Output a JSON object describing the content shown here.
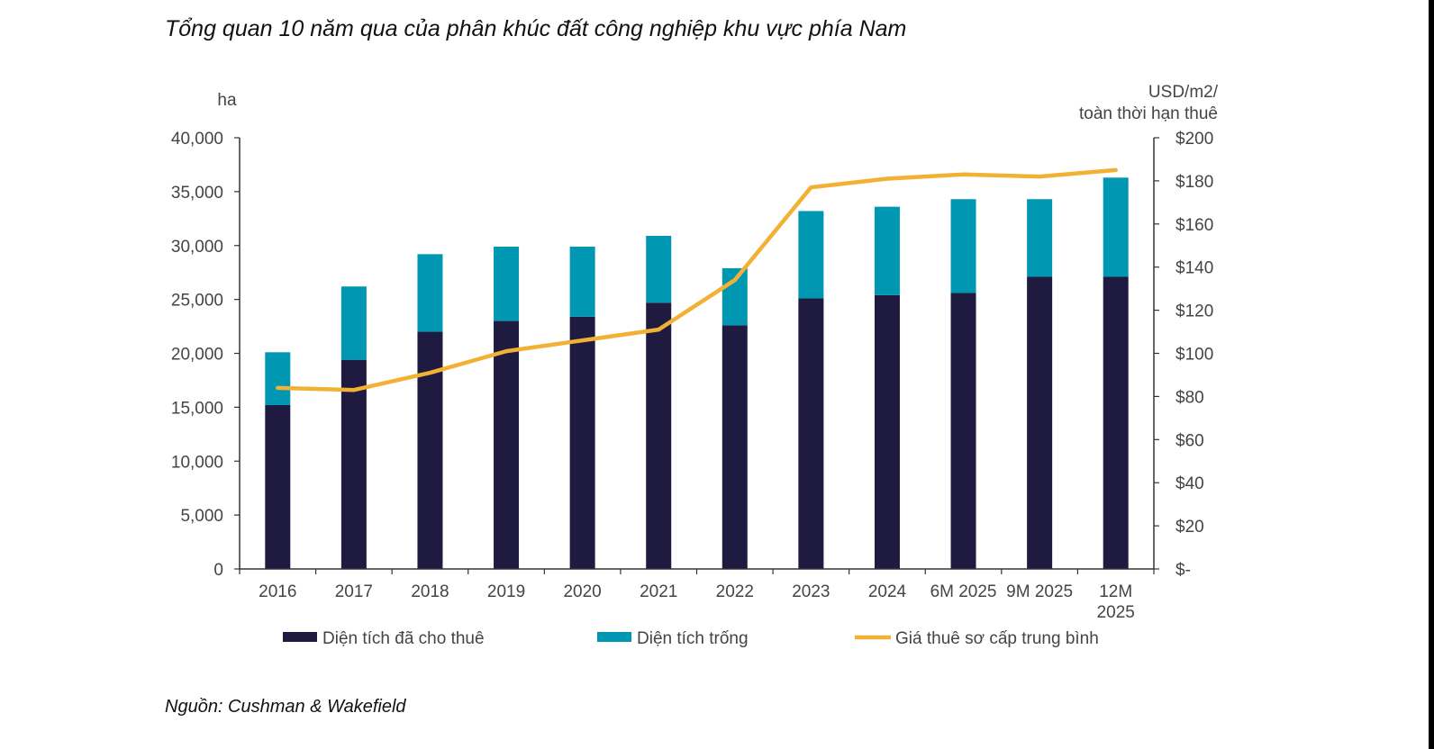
{
  "title": "Tổng quan 10 năm qua của phân khúc đất công nghiệp khu vực phía Nam",
  "source": "Nguồn: Cushman & Wakefield",
  "chart_data": {
    "type": "bar",
    "stacked": true,
    "categories": [
      [
        "2016"
      ],
      [
        "2017"
      ],
      [
        "2018"
      ],
      [
        "2019"
      ],
      [
        "2020"
      ],
      [
        "2021"
      ],
      [
        "2022"
      ],
      [
        "2023"
      ],
      [
        "2024"
      ],
      [
        "6M 2025"
      ],
      [
        "9M 2025"
      ],
      [
        "12M",
        "2025"
      ]
    ],
    "series": [
      {
        "name": "Diện tích đã cho thuê",
        "type": "bar",
        "axis": "left",
        "color": "#1e1a40",
        "values": [
          15200,
          19400,
          22000,
          23000,
          23400,
          24700,
          22600,
          25100,
          25400,
          25600,
          27100,
          27100
        ]
      },
      {
        "name": "Diện tích trống",
        "type": "bar",
        "axis": "left",
        "color": "#0097b2",
        "values": [
          4900,
          6800,
          7200,
          6900,
          6500,
          6200,
          5300,
          8100,
          8200,
          8700,
          7200,
          9200
        ]
      },
      {
        "name": "Giá thuê sơ cấp trung bình",
        "type": "line",
        "axis": "right",
        "color": "#f2b134",
        "values": [
          84,
          83,
          91,
          101,
          106,
          111,
          134,
          177,
          181,
          183,
          182,
          185
        ]
      }
    ],
    "left_axis": {
      "label": "ha",
      "min": 0,
      "max": 40000,
      "step": 5000,
      "tick_labels": [
        "0",
        "5,000",
        "10,000",
        "15,000",
        "20,000",
        "25,000",
        "30,000",
        "35,000",
        "40,000"
      ]
    },
    "right_axis": {
      "label": [
        "USD/m2/",
        "toàn thời hạn thuê"
      ],
      "min": 0,
      "max": 200,
      "step": 20,
      "tick_labels": [
        "$-",
        "$20",
        "$40",
        "$60",
        "$80",
        "$100",
        "$120",
        "$140",
        "$160",
        "$180",
        "$200"
      ]
    },
    "legend_position": "bottom"
  }
}
